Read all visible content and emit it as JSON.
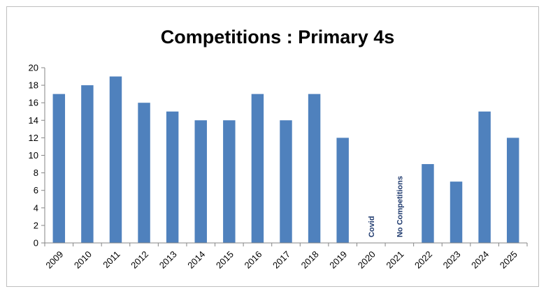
{
  "chart_data": {
    "type": "bar",
    "title": "Competitions : Primary 4s",
    "xlabel": "",
    "ylabel": "",
    "categories": [
      "2009",
      "2010",
      "2011",
      "2012",
      "2013",
      "2014",
      "2015",
      "2016",
      "2017",
      "2018",
      "2019",
      "2020",
      "2021",
      "2022",
      "2023",
      "2024",
      "2025"
    ],
    "values": [
      17,
      18,
      19,
      16,
      15,
      14,
      14,
      17,
      14,
      17,
      12,
      0,
      0,
      9,
      7,
      15,
      12
    ],
    "ylim": [
      0,
      20
    ],
    "yticks": [
      "0",
      "2",
      "4",
      "6",
      "8",
      "10",
      "12",
      "14",
      "16",
      "18",
      "20"
    ],
    "grid": false,
    "legend": "none",
    "bar_color": "#4f81bd",
    "annotations": [
      {
        "category": "2020",
        "text": "Covid"
      },
      {
        "category": "2021",
        "text": "No Competitions"
      }
    ]
  }
}
